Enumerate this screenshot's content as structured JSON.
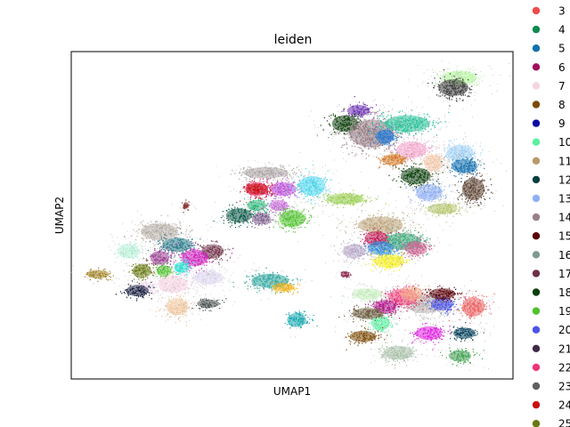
{
  "chart_data": {
    "type": "scatter",
    "title": "leiden",
    "xlabel": "UMAP1",
    "ylabel": "UMAP2",
    "ticks": "none",
    "legend_placement": "right, outside plot",
    "legend": [
      {
        "label": "3",
        "color": "#ef4b4b"
      },
      {
        "label": "4",
        "color": "#0f8a4e"
      },
      {
        "label": "5",
        "color": "#1170b0"
      },
      {
        "label": "6",
        "color": "#a0105e"
      },
      {
        "label": "7",
        "color": "#f5d4e2"
      },
      {
        "label": "8",
        "color": "#7b4a06"
      },
      {
        "label": "9",
        "color": "#0a0aa4"
      },
      {
        "label": "10",
        "color": "#5af0a0"
      },
      {
        "label": "11",
        "color": "#b89a6a"
      },
      {
        "label": "12",
        "color": "#033f3f"
      },
      {
        "label": "13",
        "color": "#8fb0f5"
      },
      {
        "label": "14",
        "color": "#9a8088"
      },
      {
        "label": "15",
        "color": "#5a0008"
      },
      {
        "label": "16",
        "color": "#7f9a92"
      },
      {
        "label": "17",
        "color": "#6d2f45"
      },
      {
        "label": "18",
        "color": "#0b3f0b"
      },
      {
        "label": "19",
        "color": "#4cc22a"
      },
      {
        "label": "20",
        "color": "#4a54e8"
      },
      {
        "label": "21",
        "color": "#3d2b48"
      },
      {
        "label": "22",
        "color": "#f0357a"
      },
      {
        "label": "23",
        "color": "#606060"
      },
      {
        "label": "24",
        "color": "#c81010"
      },
      {
        "label": "25",
        "color": "#687a10"
      }
    ],
    "clusters": [
      {
        "x": 0.88,
        "y": 0.92,
        "rx": 0.045,
        "ry": 0.025,
        "color": "#b6f6a0",
        "label": "light green"
      },
      {
        "x": 0.865,
        "y": 0.89,
        "rx": 0.04,
        "ry": 0.03,
        "color": "#3a3a3a",
        "label": "dark"
      },
      {
        "x": 0.65,
        "y": 0.82,
        "rx": 0.03,
        "ry": 0.02,
        "color": "#6a2ab8",
        "label": "purple"
      },
      {
        "x": 0.62,
        "y": 0.78,
        "rx": 0.035,
        "ry": 0.03,
        "color": "#0b3f0b",
        "label": "18"
      },
      {
        "x": 0.68,
        "y": 0.75,
        "rx": 0.06,
        "ry": 0.05,
        "color": "#9a8088",
        "label": "14"
      },
      {
        "x": 0.76,
        "y": 0.78,
        "rx": 0.06,
        "ry": 0.03,
        "color": "#2ac39a",
        "label": "teal"
      },
      {
        "x": 0.71,
        "y": 0.74,
        "rx": 0.025,
        "ry": 0.025,
        "color": "#1a78d8",
        "label": "blue"
      },
      {
        "x": 0.77,
        "y": 0.7,
        "rx": 0.04,
        "ry": 0.03,
        "color": "#f5a8d0",
        "label": "pink"
      },
      {
        "x": 0.73,
        "y": 0.67,
        "rx": 0.03,
        "ry": 0.02,
        "color": "#d47520",
        "label": "orange"
      },
      {
        "x": 0.82,
        "y": 0.66,
        "rx": 0.025,
        "ry": 0.03,
        "color": "#f5c8a8",
        "label": "peach"
      },
      {
        "x": 0.88,
        "y": 0.69,
        "rx": 0.035,
        "ry": 0.03,
        "color": "#9fd0f5",
        "label": "light blue"
      },
      {
        "x": 0.89,
        "y": 0.65,
        "rx": 0.035,
        "ry": 0.025,
        "color": "#1170b0",
        "label": "5"
      },
      {
        "x": 0.78,
        "y": 0.62,
        "rx": 0.04,
        "ry": 0.03,
        "color": "#0b3f0b",
        "label": "18"
      },
      {
        "x": 0.81,
        "y": 0.57,
        "rx": 0.035,
        "ry": 0.03,
        "color": "#8fb0f5",
        "label": "13"
      },
      {
        "x": 0.91,
        "y": 0.58,
        "rx": 0.03,
        "ry": 0.04,
        "color": "#5a4030",
        "label": "brown"
      },
      {
        "x": 0.44,
        "y": 0.63,
        "rx": 0.06,
        "ry": 0.02,
        "color": "#b0a8a8",
        "label": "grey"
      },
      {
        "x": 0.42,
        "y": 0.58,
        "rx": 0.03,
        "ry": 0.025,
        "color": "#f0357a",
        "label": "22"
      },
      {
        "x": 0.48,
        "y": 0.58,
        "rx": 0.035,
        "ry": 0.025,
        "color": "#bd4fd8",
        "label": "magenta"
      },
      {
        "x": 0.545,
        "y": 0.59,
        "rx": 0.035,
        "ry": 0.035,
        "color": "#4fd8ef",
        "label": "cyan"
      },
      {
        "x": 0.42,
        "y": 0.53,
        "rx": 0.025,
        "ry": 0.02,
        "color": "#2ab87a",
        "label": "green"
      },
      {
        "x": 0.47,
        "y": 0.53,
        "rx": 0.025,
        "ry": 0.02,
        "color": "#c86ad8",
        "label": "violet"
      },
      {
        "x": 0.5,
        "y": 0.49,
        "rx": 0.035,
        "ry": 0.03,
        "color": "#4cc22a",
        "label": "19"
      },
      {
        "x": 0.38,
        "y": 0.5,
        "rx": 0.035,
        "ry": 0.025,
        "color": "#0b5a48",
        "label": "dark teal"
      },
      {
        "x": 0.43,
        "y": 0.49,
        "rx": 0.025,
        "ry": 0.02,
        "color": "#7a5a8a",
        "label": "grey purple"
      },
      {
        "x": 0.62,
        "y": 0.55,
        "rx": 0.05,
        "ry": 0.02,
        "color": "#9bcf50",
        "label": "olive green"
      },
      {
        "x": 0.42,
        "y": 0.58,
        "rx": 0.03,
        "ry": 0.02,
        "color": "#c81010",
        "label": "24"
      },
      {
        "x": 0.7,
        "y": 0.47,
        "rx": 0.06,
        "ry": 0.03,
        "color": "#c0a880",
        "label": "tan"
      },
      {
        "x": 0.75,
        "y": 0.42,
        "rx": 0.05,
        "ry": 0.03,
        "color": "#3aa878",
        "label": "green"
      },
      {
        "x": 0.69,
        "y": 0.43,
        "rx": 0.03,
        "ry": 0.025,
        "color": "#c81858",
        "label": "crimson"
      },
      {
        "x": 0.7,
        "y": 0.4,
        "rx": 0.035,
        "ry": 0.025,
        "color": "#2a8ad8",
        "label": "blue"
      },
      {
        "x": 0.72,
        "y": 0.36,
        "rx": 0.04,
        "ry": 0.025,
        "color": "#f5f020",
        "label": "yellow"
      },
      {
        "x": 0.64,
        "y": 0.39,
        "rx": 0.03,
        "ry": 0.025,
        "color": "#b8a8c8",
        "label": "lilac"
      },
      {
        "x": 0.78,
        "y": 0.4,
        "rx": 0.03,
        "ry": 0.025,
        "color": "#d06090",
        "label": "rose"
      },
      {
        "x": 0.84,
        "y": 0.52,
        "rx": 0.04,
        "ry": 0.02,
        "color": "#b8c870",
        "label": "khaki"
      },
      {
        "x": 0.2,
        "y": 0.45,
        "rx": 0.05,
        "ry": 0.03,
        "color": "#b8b0a8",
        "label": "grey"
      },
      {
        "x": 0.24,
        "y": 0.41,
        "rx": 0.04,
        "ry": 0.025,
        "color": "#2a7a8a",
        "label": "teal"
      },
      {
        "x": 0.13,
        "y": 0.39,
        "rx": 0.03,
        "ry": 0.025,
        "color": "#b8f0d8",
        "label": "mint"
      },
      {
        "x": 0.32,
        "y": 0.39,
        "rx": 0.03,
        "ry": 0.025,
        "color": "#6d2f45",
        "label": "17"
      },
      {
        "x": 0.28,
        "y": 0.37,
        "rx": 0.035,
        "ry": 0.03,
        "color": "#d020c0",
        "label": "magenta"
      },
      {
        "x": 0.2,
        "y": 0.37,
        "rx": 0.025,
        "ry": 0.025,
        "color": "#9a3a90",
        "label": "plum"
      },
      {
        "x": 0.25,
        "y": 0.34,
        "rx": 0.02,
        "ry": 0.02,
        "color": "#20e0d0",
        "label": "cyan"
      },
      {
        "x": 0.21,
        "y": 0.33,
        "rx": 0.02,
        "ry": 0.02,
        "color": "#4cc22a",
        "label": "19"
      },
      {
        "x": 0.16,
        "y": 0.33,
        "rx": 0.025,
        "ry": 0.025,
        "color": "#687a10",
        "label": "25"
      },
      {
        "x": 0.23,
        "y": 0.29,
        "rx": 0.04,
        "ry": 0.03,
        "color": "#f5d4e2",
        "label": "7"
      },
      {
        "x": 0.17,
        "y": 0.28,
        "rx": 0.025,
        "ry": 0.02,
        "color": "#f5e0f0",
        "label": "pale pink"
      },
      {
        "x": 0.31,
        "y": 0.31,
        "rx": 0.04,
        "ry": 0.025,
        "color": "#e0d8f0",
        "label": "lavender"
      },
      {
        "x": 0.15,
        "y": 0.27,
        "rx": 0.03,
        "ry": 0.02,
        "color": "#101838",
        "label": "navy"
      },
      {
        "x": 0.06,
        "y": 0.32,
        "rx": 0.03,
        "ry": 0.015,
        "color": "#a08020",
        "label": "mustard"
      },
      {
        "x": 0.24,
        "y": 0.22,
        "rx": 0.03,
        "ry": 0.03,
        "color": "#f0c8a0",
        "label": "peach"
      },
      {
        "x": 0.31,
        "y": 0.23,
        "rx": 0.03,
        "ry": 0.015,
        "color": "#4a5050",
        "label": "slate"
      },
      {
        "x": 0.45,
        "y": 0.3,
        "rx": 0.05,
        "ry": 0.025,
        "color": "#30a8a0",
        "label": "teal"
      },
      {
        "x": 0.48,
        "y": 0.28,
        "rx": 0.03,
        "ry": 0.015,
        "color": "#f5b010",
        "label": "orange"
      },
      {
        "x": 0.51,
        "y": 0.18,
        "rx": 0.025,
        "ry": 0.025,
        "color": "#10a8b0",
        "label": "teal"
      },
      {
        "x": 0.62,
        "y": 0.32,
        "rx": 0.01,
        "ry": 0.01,
        "color": "#8a2048",
        "label": "small"
      },
      {
        "x": 0.26,
        "y": 0.53,
        "rx": 0.008,
        "ry": 0.012,
        "color": "#8a3030",
        "label": "tiny"
      },
      {
        "x": 0.8,
        "y": 0.23,
        "rx": 0.05,
        "ry": 0.035,
        "color": "#bfb8b8",
        "label": "grey"
      },
      {
        "x": 0.75,
        "y": 0.25,
        "rx": 0.04,
        "ry": 0.03,
        "color": "#f0357a",
        "label": "22"
      },
      {
        "x": 0.71,
        "y": 0.22,
        "rx": 0.03,
        "ry": 0.025,
        "color": "#b0108a",
        "label": "magenta"
      },
      {
        "x": 0.77,
        "y": 0.26,
        "rx": 0.03,
        "ry": 0.025,
        "color": "#f5b090",
        "label": "salmon"
      },
      {
        "x": 0.84,
        "y": 0.23,
        "rx": 0.03,
        "ry": 0.025,
        "color": "#4a54e8",
        "label": "20"
      },
      {
        "x": 0.84,
        "y": 0.26,
        "rx": 0.035,
        "ry": 0.02,
        "color": "#5a0008",
        "label": "15"
      },
      {
        "x": 0.91,
        "y": 0.22,
        "rx": 0.03,
        "ry": 0.035,
        "color": "#ef6060",
        "label": "red"
      },
      {
        "x": 0.7,
        "y": 0.17,
        "rx": 0.025,
        "ry": 0.025,
        "color": "#5af0a0",
        "label": "10"
      },
      {
        "x": 0.66,
        "y": 0.13,
        "rx": 0.035,
        "ry": 0.02,
        "color": "#7b4a06",
        "label": "8"
      },
      {
        "x": 0.81,
        "y": 0.14,
        "rx": 0.035,
        "ry": 0.025,
        "color": "#e020e0",
        "label": "magenta"
      },
      {
        "x": 0.89,
        "y": 0.14,
        "rx": 0.03,
        "ry": 0.02,
        "color": "#033f5a",
        "label": "dark teal"
      },
      {
        "x": 0.67,
        "y": 0.2,
        "rx": 0.04,
        "ry": 0.02,
        "color": "#6a5a3a",
        "label": "grey brown"
      },
      {
        "x": 0.74,
        "y": 0.08,
        "rx": 0.04,
        "ry": 0.025,
        "color": "#a8c0a8",
        "label": "sage"
      },
      {
        "x": 0.88,
        "y": 0.07,
        "rx": 0.03,
        "ry": 0.02,
        "color": "#40a050",
        "label": "green"
      },
      {
        "x": 0.67,
        "y": 0.26,
        "rx": 0.04,
        "ry": 0.02,
        "color": "#c8f0c0",
        "label": "pale green"
      }
    ]
  }
}
